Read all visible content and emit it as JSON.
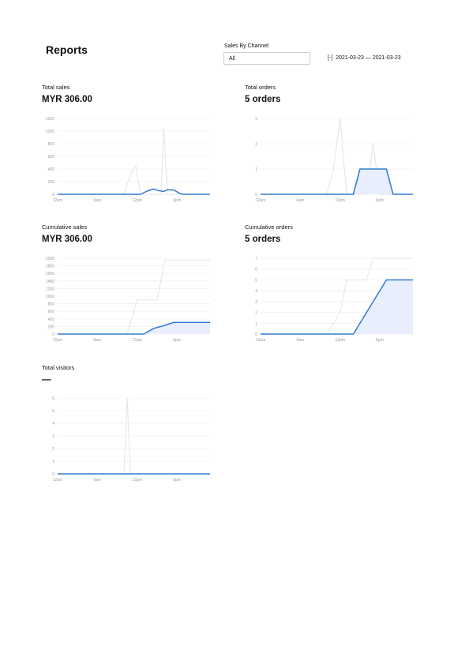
{
  "header": {
    "title": "Reports"
  },
  "filters": {
    "channel_label": "Sales By Channel:",
    "channel_value": "All",
    "date_icon": "[-]",
    "date_range": "2021-03-23 — 2021-03-23"
  },
  "cards": {
    "total_sales": {
      "title": "Total sales",
      "value": "MYR 306.00"
    },
    "total_orders": {
      "title": "Total orders",
      "value": "5 orders"
    },
    "cumulative_sales": {
      "title": "Cumulative sales",
      "value": "MYR 306.00"
    },
    "cumulative_orders": {
      "title": "Cumulative orders",
      "value": "5 orders"
    },
    "total_visitors": {
      "title": "Total visitors",
      "value": "—"
    }
  },
  "colors": {
    "primary": "#2f7bd0",
    "comparison": "#e4e4e4",
    "fill": "#e8eefb",
    "grid": "#ececec"
  },
  "chart_data": [
    {
      "id": "total_sales",
      "type": "line",
      "yticks": [
        0,
        200,
        400,
        600,
        800,
        1000,
        1200
      ],
      "ylim": [
        0,
        1200
      ],
      "xticks": [
        {
          "x": 0,
          "label": "12am"
        },
        {
          "x": 6,
          "label": "6am"
        },
        {
          "x": 12,
          "label": "12pm"
        },
        {
          "x": 18,
          "label": "6pm"
        }
      ],
      "xlim": [
        0,
        23
      ],
      "area": false,
      "series": [
        {
          "role": "current",
          "values": [
            [
              0,
              0
            ],
            [
              12.5,
              0
            ],
            [
              13.5,
              50
            ],
            [
              14.5,
              85
            ],
            [
              15.2,
              60
            ],
            [
              16,
              45
            ],
            [
              16.5,
              70
            ],
            [
              17.5,
              70
            ],
            [
              18.5,
              10
            ],
            [
              19,
              0
            ],
            [
              23,
              0
            ]
          ]
        },
        {
          "role": "comparison",
          "values": [
            [
              0,
              0
            ],
            [
              10,
              0
            ],
            [
              11,
              320
            ],
            [
              11.8,
              450
            ],
            [
              12.5,
              0
            ],
            [
              15.6,
              0
            ],
            [
              16,
              1050
            ],
            [
              16.6,
              0
            ],
            [
              23,
              0
            ]
          ]
        }
      ]
    },
    {
      "id": "total_orders",
      "type": "area",
      "yticks": [
        0,
        1,
        2,
        3
      ],
      "ylim": [
        0,
        3
      ],
      "xticks": [
        {
          "x": 0,
          "label": "12am"
        },
        {
          "x": 6,
          "label": "6am"
        },
        {
          "x": 12,
          "label": "12pm"
        },
        {
          "x": 18,
          "label": "6pm"
        }
      ],
      "xlim": [
        0,
        23
      ],
      "area": true,
      "series": [
        {
          "role": "current",
          "values": [
            [
              0,
              0
            ],
            [
              14,
              0
            ],
            [
              15,
              1
            ],
            [
              19,
              1
            ],
            [
              20,
              0
            ],
            [
              23,
              0
            ]
          ]
        },
        {
          "role": "comparison",
          "values": [
            [
              0,
              0
            ],
            [
              10,
              0
            ],
            [
              11,
              1
            ],
            [
              12,
              3
            ],
            [
              13,
              0
            ],
            [
              16,
              0
            ],
            [
              17,
              2
            ],
            [
              18,
              0
            ],
            [
              23,
              0
            ]
          ]
        }
      ]
    },
    {
      "id": "cumulative_sales",
      "type": "area",
      "yticks": [
        0,
        200,
        400,
        600,
        800,
        1000,
        1200,
        1400,
        1600,
        1800,
        2000
      ],
      "ylim": [
        0,
        2000
      ],
      "xticks": [
        {
          "x": 0,
          "label": "12am"
        },
        {
          "x": 6,
          "label": "6am"
        },
        {
          "x": 12,
          "label": "12pm"
        },
        {
          "x": 18,
          "label": "6pm"
        }
      ],
      "xlim": [
        0,
        23
      ],
      "area": true,
      "series": [
        {
          "role": "current",
          "values": [
            [
              0,
              0
            ],
            [
              13,
              0
            ],
            [
              14.5,
              150
            ],
            [
              16,
              220
            ],
            [
              17.5,
              306
            ],
            [
              23,
              306
            ]
          ]
        },
        {
          "role": "comparison",
          "values": [
            [
              0,
              0
            ],
            [
              10.5,
              0
            ],
            [
              12,
              900
            ],
            [
              15,
              900
            ],
            [
              16.2,
              1950
            ],
            [
              23,
              1950
            ]
          ]
        }
      ]
    },
    {
      "id": "cumulative_orders",
      "type": "area",
      "yticks": [
        0,
        1,
        2,
        3,
        4,
        5,
        6,
        7
      ],
      "ylim": [
        0,
        7
      ],
      "xticks": [
        {
          "x": 0,
          "label": "12am"
        },
        {
          "x": 6,
          "label": "6am"
        },
        {
          "x": 12,
          "label": "12pm"
        },
        {
          "x": 18,
          "label": "6pm"
        }
      ],
      "xlim": [
        0,
        23
      ],
      "area": true,
      "series": [
        {
          "role": "current",
          "values": [
            [
              0,
              0
            ],
            [
              14,
              0
            ],
            [
              19,
              5
            ],
            [
              23,
              5
            ]
          ]
        },
        {
          "role": "comparison",
          "values": [
            [
              0,
              0
            ],
            [
              10,
              0
            ],
            [
              12,
              2
            ],
            [
              13,
              5
            ],
            [
              16,
              5
            ],
            [
              17,
              7
            ],
            [
              23,
              7
            ]
          ]
        }
      ]
    },
    {
      "id": "total_visitors",
      "type": "line",
      "yticks": [
        0,
        1,
        2,
        3,
        4,
        5,
        6
      ],
      "ylim": [
        0,
        6
      ],
      "xticks": [
        {
          "x": 0,
          "label": "12am"
        },
        {
          "x": 6,
          "label": "6am"
        },
        {
          "x": 12,
          "label": "12pm"
        },
        {
          "x": 18,
          "label": "6pm"
        }
      ],
      "xlim": [
        0,
        23
      ],
      "area": false,
      "series": [
        {
          "role": "current",
          "values": [
            [
              0,
              0
            ],
            [
              23,
              0
            ]
          ]
        },
        {
          "role": "comparison",
          "values": [
            [
              0,
              0
            ],
            [
              10,
              0
            ],
            [
              10.5,
              6
            ],
            [
              11,
              0
            ],
            [
              23,
              0
            ]
          ]
        }
      ]
    }
  ]
}
